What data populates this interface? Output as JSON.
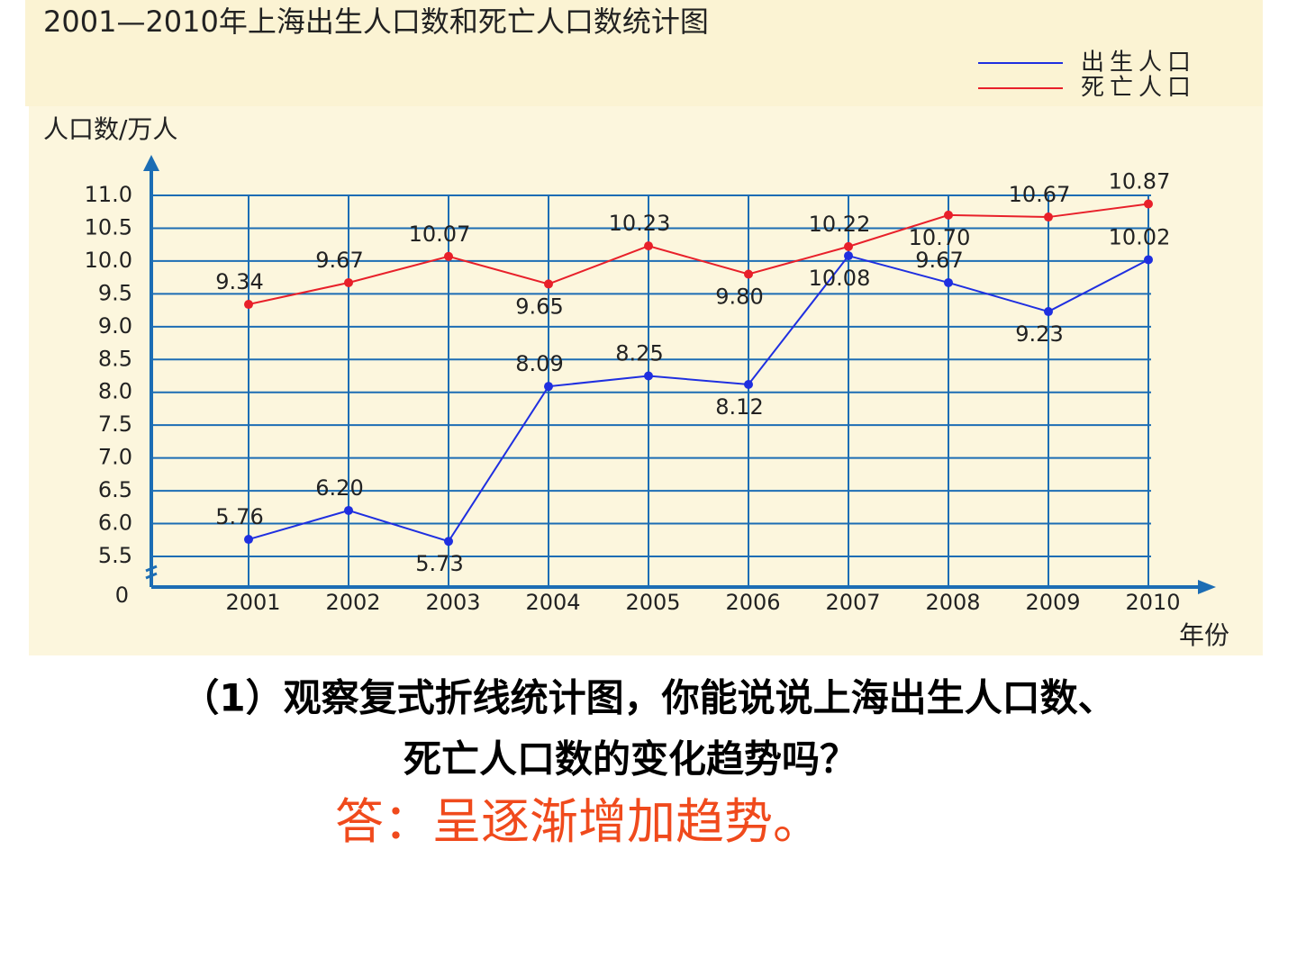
{
  "chart_data": {
    "type": "line",
    "title": "2001—2010年上海出生人口数和死亡人口数统计图",
    "y_label": "人口数/万人",
    "x_label": "年份",
    "categories": [
      "2001",
      "2002",
      "2003",
      "2004",
      "2005",
      "2006",
      "2007",
      "2008",
      "2009",
      "2010"
    ],
    "series": [
      {
        "name": "出生人口",
        "color": "#1f2fe0",
        "values": [
          5.76,
          6.2,
          5.73,
          8.09,
          8.25,
          8.12,
          10.08,
          9.67,
          9.23,
          10.02
        ],
        "value_labels": [
          "5.76",
          "6.20",
          "5.73",
          "8.09",
          "8.25",
          "8.12",
          "10.08",
          "9.67",
          "9.23",
          "10.02"
        ]
      },
      {
        "name": "死亡人口",
        "color": "#e8202a",
        "values": [
          9.34,
          9.67,
          10.07,
          9.65,
          10.23,
          9.8,
          10.22,
          10.7,
          10.67,
          10.87
        ],
        "value_labels": [
          "9.34",
          "9.67",
          "10.07",
          "9.65",
          "10.23",
          "9.80",
          "10.22",
          "10.70",
          "10.67",
          "10.87"
        ]
      }
    ],
    "ylim": [
      0,
      11
    ],
    "axis_break": [
      0,
      5
    ],
    "yticks": [
      0,
      {
        "value": 5.5,
        "label": "5.5"
      },
      {
        "value": 6,
        "label": "6.0"
      },
      {
        "value": 6.5,
        "label": "6.5"
      },
      {
        "value": 7,
        "label": "7.0"
      },
      {
        "value": 7.5,
        "label": "7.5"
      },
      {
        "value": 8,
        "label": "8.0"
      },
      {
        "value": 8.5,
        "label": "8.5"
      },
      {
        "value": 9,
        "label": "9.0"
      },
      {
        "value": 9.5,
        "label": "9.5"
      },
      {
        "value": 10,
        "label": "10.0"
      },
      {
        "value": 10.5,
        "label": "10.5"
      },
      {
        "value": 11,
        "label": "11.0"
      }
    ],
    "grid": true,
    "legend": "top-right"
  },
  "question": {
    "lines": [
      "（1）观察复式折线统计图，你能说说上海出生人口数、",
      "死亡人口数的变化趋势吗？"
    ]
  },
  "answer": "答：呈逐渐增加趋势。"
}
